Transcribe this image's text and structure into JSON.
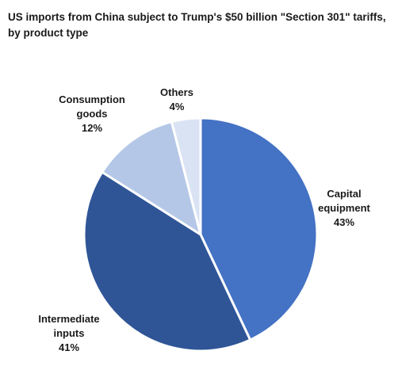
{
  "chart_data": {
    "type": "pie",
    "title": [
      "US imports from China subject to Trump's $50 billion \"Section 301\" tariffs,",
      "by product type"
    ],
    "slices": [
      {
        "label": [
          "Capital",
          "equipment"
        ],
        "value": 43,
        "display": "43%",
        "color": "#4472c4"
      },
      {
        "label": [
          "Intermediate",
          "inputs"
        ],
        "value": 41,
        "display": "41%",
        "color": "#2f5597"
      },
      {
        "label": [
          "Consumption",
          "goods"
        ],
        "value": 12,
        "display": "12%",
        "color": "#b4c7e7"
      },
      {
        "label": [
          "Others"
        ],
        "value": 4,
        "display": "4%",
        "color": "#dae3f3"
      }
    ],
    "start": "12 o'clock",
    "direction": "clockwise",
    "legend": "none"
  }
}
